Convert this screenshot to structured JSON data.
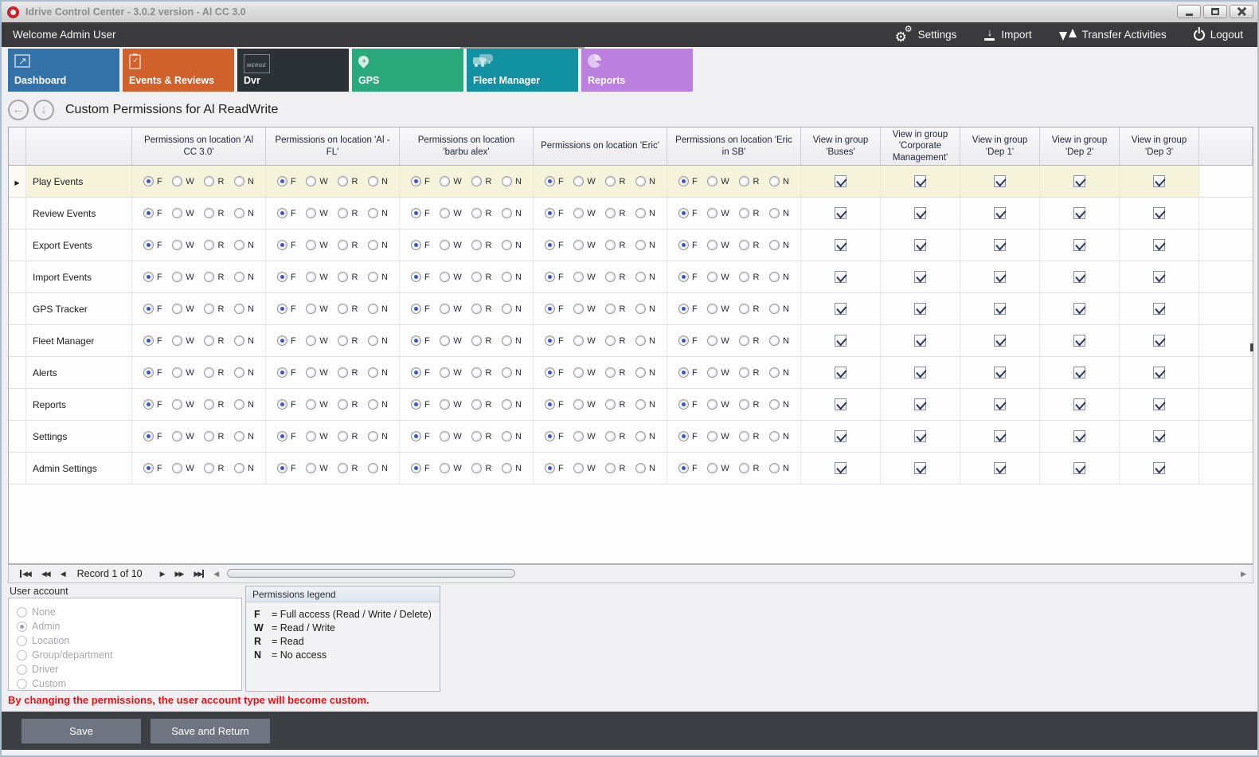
{
  "window": {
    "title": "Idrive Control Center - 3.0.2 version - Al CC 3.0"
  },
  "topbar": {
    "welcome": "Welcome Admin User",
    "actions": [
      {
        "label": "Settings",
        "icon": "gears-icon"
      },
      {
        "label": "Import",
        "icon": "import-icon"
      },
      {
        "label": "Transfer Activities",
        "icon": "transfer-icon"
      },
      {
        "label": "Logout",
        "icon": "power-icon"
      }
    ]
  },
  "tabs": [
    {
      "label": "Dashboard",
      "color": "#3372a9",
      "icon": "line-chart-icon",
      "selected": false
    },
    {
      "label": "Events & Reviews",
      "color": "#d1622b",
      "icon": "clipboard-check-icon",
      "selected": false
    },
    {
      "label": "Dvr",
      "color": "#2c3135",
      "icon": "dvr-merge-icon",
      "selected": false
    },
    {
      "label": "GPS",
      "color": "#2aa97c",
      "icon": "map-pin-icon",
      "selected": false
    },
    {
      "label": "Fleet Manager",
      "color": "#1291a2",
      "icon": "fleet-trucks-icon",
      "selected": true
    },
    {
      "label": "Reports",
      "color": "#bb80e0",
      "icon": "pie-chart-icon",
      "selected": false
    }
  ],
  "page": {
    "title": "Custom Permissions for Al ReadWrite"
  },
  "grid": {
    "permission_columns": [
      "Permissions on location 'Al CC 3.0'",
      "Permissions on location 'Al - FL'",
      "Permissions on location 'barbu alex'",
      "Permissions on location 'Eric'",
      "Permissions on location 'Eric in SB'"
    ],
    "group_columns": [
      "View in group 'Buses'",
      "View in group 'Corporate Management'",
      "View in group 'Dep 1'",
      "View in group 'Dep 2'",
      "View in group 'Dep 3'"
    ],
    "options": [
      "F",
      "W",
      "R",
      "N"
    ],
    "rows": [
      {
        "label": "Play Events",
        "selected": true,
        "permissions": [
          "F",
          "F",
          "F",
          "F",
          "F"
        ],
        "groups": [
          true,
          true,
          true,
          true,
          true
        ]
      },
      {
        "label": "Review Events",
        "selected": false,
        "permissions": [
          "F",
          "F",
          "F",
          "F",
          "F"
        ],
        "groups": [
          true,
          true,
          true,
          true,
          true
        ]
      },
      {
        "label": "Export Events",
        "selected": false,
        "permissions": [
          "F",
          "F",
          "F",
          "F",
          "F"
        ],
        "groups": [
          true,
          true,
          true,
          true,
          true
        ]
      },
      {
        "label": "Import Events",
        "selected": false,
        "permissions": [
          "F",
          "F",
          "F",
          "F",
          "F"
        ],
        "groups": [
          true,
          true,
          true,
          true,
          true
        ]
      },
      {
        "label": "GPS Tracker",
        "selected": false,
        "permissions": [
          "F",
          "F",
          "F",
          "F",
          "F"
        ],
        "groups": [
          true,
          true,
          true,
          true,
          true
        ]
      },
      {
        "label": "Fleet Manager",
        "selected": false,
        "permissions": [
          "F",
          "F",
          "F",
          "F",
          "F"
        ],
        "groups": [
          true,
          true,
          true,
          true,
          true
        ]
      },
      {
        "label": "Alerts",
        "selected": false,
        "permissions": [
          "F",
          "F",
          "F",
          "F",
          "F"
        ],
        "groups": [
          true,
          true,
          true,
          true,
          true
        ]
      },
      {
        "label": "Reports",
        "selected": false,
        "permissions": [
          "F",
          "F",
          "F",
          "F",
          "F"
        ],
        "groups": [
          true,
          true,
          true,
          true,
          true
        ]
      },
      {
        "label": "Settings",
        "selected": false,
        "permissions": [
          "F",
          "F",
          "F",
          "F",
          "F"
        ],
        "groups": [
          true,
          true,
          true,
          true,
          true
        ]
      },
      {
        "label": "Admin Settings",
        "selected": false,
        "permissions": [
          "F",
          "F",
          "F",
          "F",
          "F"
        ],
        "groups": [
          true,
          true,
          true,
          true,
          true
        ]
      }
    ]
  },
  "pager": {
    "record_text": "Record 1 of 10"
  },
  "user_account": {
    "label": "User account",
    "options": [
      {
        "label": "None",
        "selected": false
      },
      {
        "label": "Admin",
        "selected": true
      },
      {
        "label": "Location",
        "selected": false
      },
      {
        "label": "Group/department",
        "selected": false
      },
      {
        "label": "Driver",
        "selected": false
      },
      {
        "label": "Custom",
        "selected": false
      }
    ]
  },
  "legend": {
    "title": "Permissions legend",
    "entries": [
      {
        "key": "F",
        "desc": "= Full access (Read / Write / Delete)"
      },
      {
        "key": "W",
        "desc": "= Read / Write"
      },
      {
        "key": "R",
        "desc": "= Read"
      },
      {
        "key": "N",
        "desc": "= No access"
      }
    ]
  },
  "warning": "By changing the permissions, the user account type will become custom.",
  "footer": {
    "save": "Save",
    "save_return": "Save and Return"
  }
}
